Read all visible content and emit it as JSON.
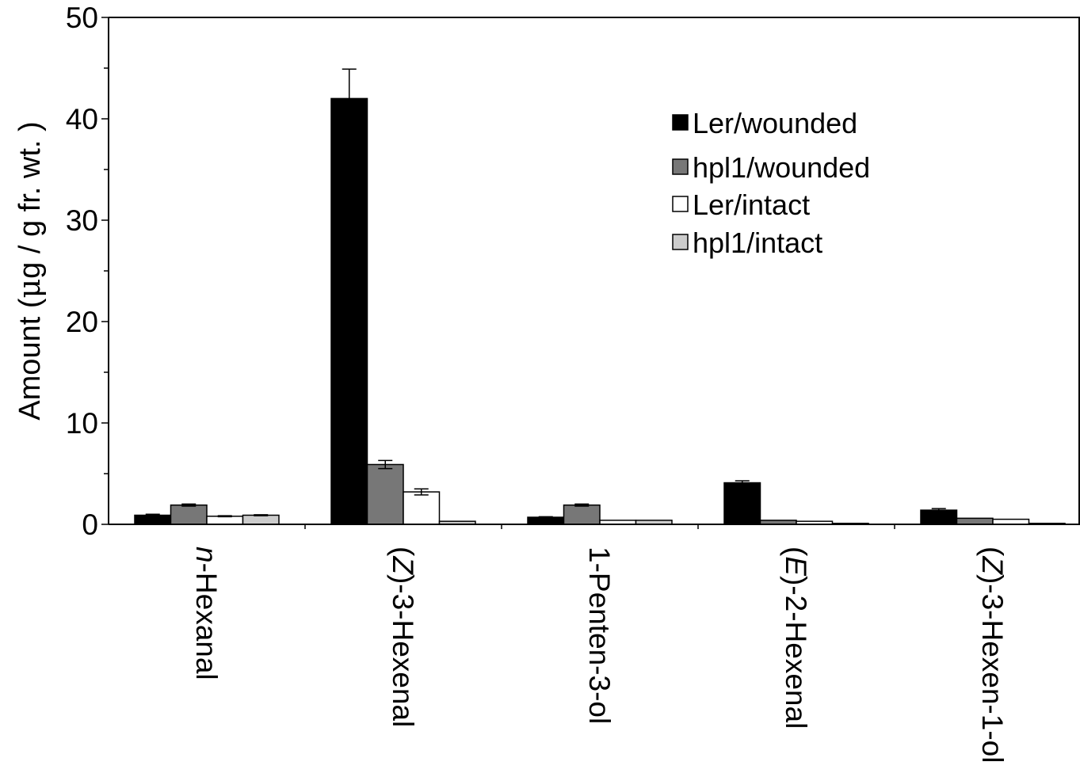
{
  "chart_data": {
    "type": "bar",
    "ylabel_pre": "Amount (",
    "ylabel_mu": "μ",
    "ylabel_post": "g / g fr. wt. )",
    "ylim": [
      0,
      50
    ],
    "yticks": [
      "0",
      "10",
      "20",
      "30",
      "40",
      "50"
    ],
    "grid": false,
    "legend_position": "top-right",
    "categories": [
      {
        "prefix": "",
        "italic": "n",
        "rest": "-Hexanal"
      },
      {
        "prefix": "(",
        "italic": "Z",
        "rest": ")-3-Hexenal"
      },
      {
        "prefix": "",
        "italic": "",
        "rest": "1-Penten-3-ol"
      },
      {
        "prefix": "(",
        "italic": "E",
        "rest": ")-2-Hexenal"
      },
      {
        "prefix": "(",
        "italic": "Z",
        "rest": ")-3-Hexen-1-ol"
      }
    ],
    "series": [
      {
        "name": "Ler/wounded",
        "color": "#000000",
        "values": [
          0.9,
          42.0,
          0.7,
          4.1,
          1.4
        ],
        "errors": [
          0.1,
          2.9,
          0.05,
          0.2,
          0.15
        ]
      },
      {
        "name": "hpl1/wounded",
        "color": "#777777",
        "values": [
          1.9,
          5.9,
          1.9,
          0.4,
          0.6
        ],
        "errors": [
          0.1,
          0.4,
          0.1,
          0.0,
          0.0
        ]
      },
      {
        "name": "Ler/intact",
        "color": "#ffffff",
        "values": [
          0.8,
          3.2,
          0.4,
          0.3,
          0.5
        ],
        "errors": [
          0.05,
          0.3,
          0.0,
          0.0,
          0.0
        ]
      },
      {
        "name": "hpl1/intact",
        "color": "#cccccc",
        "values": [
          0.9,
          0.3,
          0.4,
          0.1,
          0.1
        ],
        "errors": [
          0.05,
          0.0,
          0.0,
          0.0,
          0.0
        ]
      }
    ]
  }
}
